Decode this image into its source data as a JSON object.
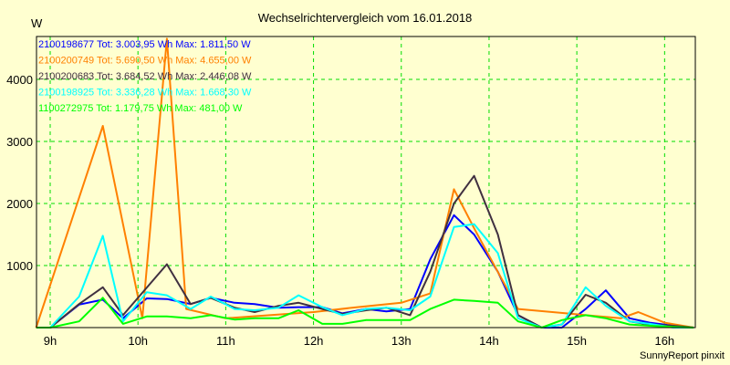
{
  "chart_data": {
    "type": "line",
    "title": "Wechselrichtervergleich vom 16.01.2018",
    "ylabel": "W",
    "xlabel": "",
    "footer": "SunnyReport pinxit",
    "xlim": [
      8.844,
      16.35
    ],
    "ylim": [
      0,
      4691
    ],
    "grid": true,
    "legend_placement": "top-left",
    "x_ticks": [
      {
        "v": 9,
        "label": "9h"
      },
      {
        "v": 10,
        "label": "10h"
      },
      {
        "v": 11,
        "label": "11h"
      },
      {
        "v": 12,
        "label": "12h"
      },
      {
        "v": 13,
        "label": "13h"
      },
      {
        "v": 14,
        "label": "14h"
      },
      {
        "v": 15,
        "label": "15h"
      },
      {
        "v": 16,
        "label": "16h"
      }
    ],
    "y_ticks": [
      {
        "v": 1000,
        "label": "1000"
      },
      {
        "v": 2000,
        "label": "2000"
      },
      {
        "v": 3000,
        "label": "3000"
      },
      {
        "v": 4000,
        "label": "4000"
      }
    ],
    "series": [
      {
        "name": "2100198677",
        "legend": "2100198677 Tot: 3.003,95 Wh Max: 1.811,50 W",
        "color": "#0000ff",
        "points": [
          [
            8.84,
            0
          ],
          [
            9.0,
            0
          ],
          [
            9.33,
            370
          ],
          [
            9.6,
            450
          ],
          [
            9.83,
            150
          ],
          [
            10.1,
            470
          ],
          [
            10.33,
            460
          ],
          [
            10.6,
            380
          ],
          [
            10.83,
            480
          ],
          [
            11.1,
            400
          ],
          [
            11.33,
            380
          ],
          [
            11.6,
            320
          ],
          [
            11.83,
            330
          ],
          [
            12.1,
            330
          ],
          [
            12.33,
            230
          ],
          [
            12.6,
            300
          ],
          [
            12.83,
            260
          ],
          [
            13.1,
            300
          ],
          [
            13.33,
            1100
          ],
          [
            13.6,
            1811
          ],
          [
            13.83,
            1500
          ],
          [
            14.1,
            900
          ],
          [
            14.33,
            200
          ],
          [
            14.6,
            0
          ],
          [
            14.83,
            0
          ],
          [
            15.1,
            300
          ],
          [
            15.33,
            600
          ],
          [
            15.6,
            150
          ],
          [
            15.83,
            80
          ],
          [
            16.1,
            30
          ],
          [
            16.33,
            0
          ]
        ]
      },
      {
        "name": "2100200749",
        "legend": "2100200749 Tot: 5.690,50 Wh Max: 4.655,00 W",
        "color": "#ff8000",
        "points": [
          [
            8.84,
            0
          ],
          [
            9.6,
            3250
          ],
          [
            10.05,
            150
          ],
          [
            10.33,
            4655
          ],
          [
            10.55,
            300
          ],
          [
            11.0,
            150
          ],
          [
            11.5,
            200
          ],
          [
            12.0,
            250
          ],
          [
            12.5,
            330
          ],
          [
            13.0,
            400
          ],
          [
            13.33,
            550
          ],
          [
            13.6,
            2230
          ],
          [
            13.83,
            1600
          ],
          [
            14.33,
            300
          ],
          [
            15.5,
            150
          ],
          [
            15.7,
            250
          ],
          [
            16.0,
            80
          ],
          [
            16.33,
            0
          ]
        ]
      },
      {
        "name": "2100200683",
        "legend": "2100200683 Tot: 3.684,52 Wh Max: 2.446,08 W",
        "color": "#403040",
        "points": [
          [
            8.84,
            0
          ],
          [
            9.0,
            0
          ],
          [
            9.33,
            380
          ],
          [
            9.6,
            650
          ],
          [
            9.83,
            200
          ],
          [
            10.33,
            1020
          ],
          [
            10.6,
            380
          ],
          [
            10.83,
            480
          ],
          [
            11.1,
            320
          ],
          [
            11.33,
            250
          ],
          [
            11.6,
            350
          ],
          [
            11.83,
            400
          ],
          [
            12.1,
            300
          ],
          [
            12.33,
            220
          ],
          [
            12.6,
            280
          ],
          [
            12.83,
            320
          ],
          [
            13.1,
            200
          ],
          [
            13.33,
            900
          ],
          [
            13.6,
            2000
          ],
          [
            13.83,
            2446
          ],
          [
            14.1,
            1500
          ],
          [
            14.33,
            200
          ],
          [
            14.6,
            0
          ],
          [
            14.83,
            50
          ],
          [
            15.1,
            530
          ],
          [
            15.33,
            400
          ],
          [
            15.6,
            100
          ],
          [
            15.83,
            50
          ],
          [
            16.1,
            30
          ],
          [
            16.33,
            0
          ]
        ]
      },
      {
        "name": "2100198925",
        "legend": "2100198925 Tot: 3.336,28 Wh Max: 1.668,30 W",
        "color": "#00ffff",
        "points": [
          [
            8.84,
            0
          ],
          [
            9.0,
            0
          ],
          [
            9.33,
            500
          ],
          [
            9.6,
            1480
          ],
          [
            9.83,
            100
          ],
          [
            10.1,
            570
          ],
          [
            10.33,
            520
          ],
          [
            10.6,
            300
          ],
          [
            10.83,
            500
          ],
          [
            11.1,
            300
          ],
          [
            11.33,
            280
          ],
          [
            11.6,
            320
          ],
          [
            11.83,
            520
          ],
          [
            12.1,
            330
          ],
          [
            12.33,
            200
          ],
          [
            12.6,
            300
          ],
          [
            12.83,
            320
          ],
          [
            13.1,
            280
          ],
          [
            13.33,
            500
          ],
          [
            13.6,
            1620
          ],
          [
            13.83,
            1668
          ],
          [
            14.1,
            1200
          ],
          [
            14.33,
            150
          ],
          [
            14.6,
            0
          ],
          [
            14.83,
            50
          ],
          [
            15.1,
            650
          ],
          [
            15.33,
            350
          ],
          [
            15.6,
            100
          ],
          [
            15.83,
            60
          ],
          [
            16.1,
            0
          ],
          [
            16.33,
            0
          ]
        ]
      },
      {
        "name": "1100272975",
        "legend": "1100272975 Tot: 1.179,75 Wh Max: 481,00 W",
        "color": "#00ff00",
        "points": [
          [
            8.84,
            0
          ],
          [
            9.0,
            0
          ],
          [
            9.33,
            100
          ],
          [
            9.6,
            481
          ],
          [
            9.83,
            60
          ],
          [
            10.1,
            180
          ],
          [
            10.33,
            180
          ],
          [
            10.6,
            150
          ],
          [
            10.83,
            200
          ],
          [
            11.1,
            130
          ],
          [
            11.33,
            150
          ],
          [
            11.6,
            150
          ],
          [
            11.83,
            280
          ],
          [
            12.1,
            60
          ],
          [
            12.33,
            60
          ],
          [
            12.6,
            120
          ],
          [
            12.83,
            120
          ],
          [
            13.1,
            120
          ],
          [
            13.33,
            300
          ],
          [
            13.6,
            450
          ],
          [
            13.83,
            430
          ],
          [
            14.1,
            400
          ],
          [
            14.33,
            100
          ],
          [
            14.6,
            0
          ],
          [
            14.83,
            120
          ],
          [
            15.1,
            200
          ],
          [
            15.33,
            150
          ],
          [
            15.6,
            50
          ],
          [
            15.83,
            30
          ],
          [
            16.1,
            10
          ],
          [
            16.33,
            0
          ]
        ]
      }
    ]
  }
}
